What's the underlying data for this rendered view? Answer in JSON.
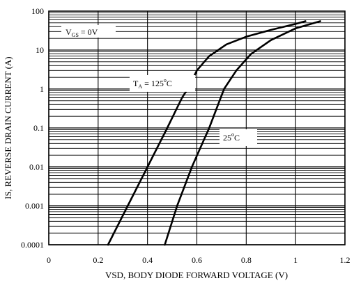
{
  "chart_data": {
    "type": "line",
    "title": "",
    "xlabel": "VSD, BODY DIODE FORWARD VOLTAGE (V)",
    "ylabel": "IS, REVERSE DRAIN CURRENT (A)",
    "xlim": [
      0,
      1.2
    ],
    "ylim": [
      0.0001,
      100
    ],
    "y_scale": "log",
    "grid": true,
    "x_ticks": [
      "0",
      "0.2",
      "0.4",
      "0.6",
      "0.8",
      "1",
      "1.2"
    ],
    "y_ticks": [
      "0.0001",
      "0.001",
      "0.01",
      "0.1",
      "1",
      "10",
      "100"
    ],
    "series": [
      {
        "name": "TA = 125°C",
        "x": [
          0.24,
          0.32,
          0.4,
          0.48,
          0.54,
          0.57,
          0.6,
          0.65,
          0.72,
          0.8,
          0.9,
          1.0,
          1.04
        ],
        "y": [
          0.0001,
          0.001,
          0.01,
          0.1,
          0.6,
          1.2,
          3,
          7,
          14,
          22,
          33,
          47,
          55
        ]
      },
      {
        "name": "25°C",
        "x": [
          0.47,
          0.52,
          0.58,
          0.65,
          0.71,
          0.76,
          0.82,
          0.9,
          1.0,
          1.1
        ],
        "y": [
          0.0001,
          0.001,
          0.01,
          0.1,
          1,
          3,
          8,
          18,
          36,
          55
        ]
      }
    ],
    "annotations": [
      {
        "main": "V",
        "sub": "GS",
        "rest": " = 0V"
      },
      {
        "main": "T",
        "sub": "A",
        "rest": " = 125",
        "sup": "o",
        "tail": "C"
      },
      {
        "main": "25",
        "sup": "o",
        "tail": "C"
      }
    ]
  }
}
